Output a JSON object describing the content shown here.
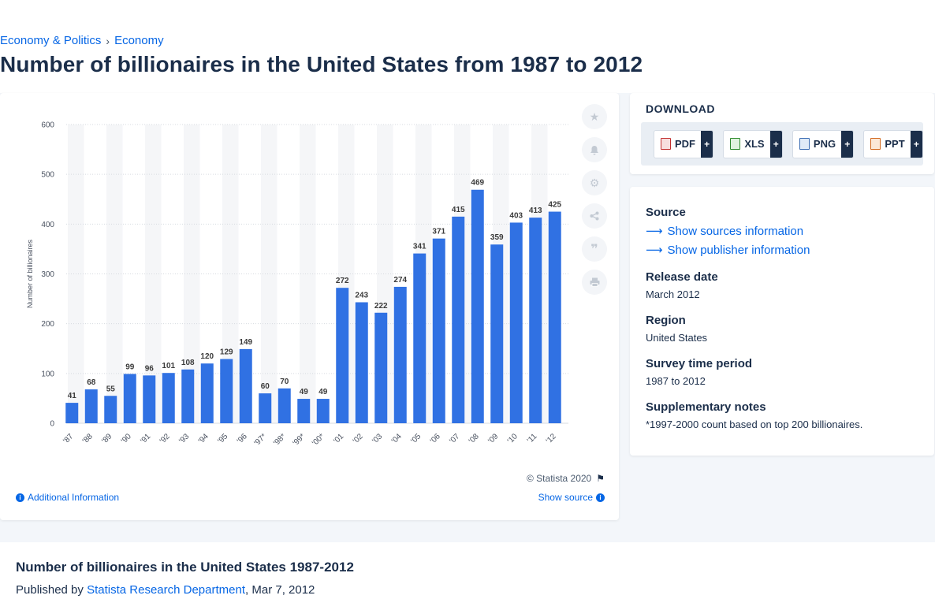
{
  "breadcrumb": {
    "item1": "Economy & Politics",
    "item2": "Economy",
    "separator": "›"
  },
  "page_title": "Number of billionaires in the United States from 1987 to 2012",
  "chart_data": {
    "type": "bar",
    "title": "",
    "xlabel": "",
    "ylabel": "Number of billionaires",
    "ylim": [
      0,
      600
    ],
    "yticks": [
      0,
      100,
      200,
      300,
      400,
      500,
      600
    ],
    "grid": true,
    "categories": [
      "'87",
      "'88",
      "'89",
      "'90",
      "'91",
      "'92",
      "'93",
      "'94",
      "'95",
      "'96",
      "'97*",
      "'98*",
      "'99*",
      "'00*",
      "'01",
      "'02",
      "'03",
      "'04",
      "'05",
      "'06",
      "'07",
      "'08",
      "'09",
      "'10",
      "'11",
      "'12"
    ],
    "values": [
      41,
      68,
      55,
      99,
      96,
      101,
      108,
      120,
      129,
      149,
      60,
      70,
      49,
      49,
      272,
      243,
      222,
      274,
      341,
      371,
      415,
      469,
      359,
      403,
      413,
      425
    ],
    "bar_color": "#3071e3",
    "alt_band_color": "#f5f6f8",
    "label_color": "#3a3a3a"
  },
  "chart_footer": {
    "copyright": "© Statista 2020",
    "additional_info": "Additional Information",
    "show_source": "Show source"
  },
  "tools": {
    "icons": [
      "star-icon",
      "bell-icon",
      "gear-icon",
      "share-icon",
      "quote-icon",
      "print-icon"
    ]
  },
  "download": {
    "title": "DOWNLOAD",
    "buttons": [
      {
        "label": "PDF",
        "icon": "pdf-file-icon"
      },
      {
        "label": "XLS",
        "icon": "xls-file-icon"
      },
      {
        "label": "PNG",
        "icon": "png-file-icon"
      },
      {
        "label": "PPT",
        "icon": "ppt-file-icon"
      }
    ],
    "plus": "+"
  },
  "info": {
    "source_label": "Source",
    "show_sources": "Show sources information",
    "show_publisher": "Show publisher information",
    "release_label": "Release date",
    "release_value": "March 2012",
    "region_label": "Region",
    "region_value": "United States",
    "survey_label": "Survey time period",
    "survey_value": "1987 to 2012",
    "notes_label": "Supplementary notes",
    "notes_value": "*1997-2000 count based on top 200 billionaires."
  },
  "bottom": {
    "title": "Number of billionaires in the United States 1987-2012",
    "published_prefix": "Published by",
    "publisher": "Statista Research Department",
    "date": ", Mar 7, 2012"
  }
}
